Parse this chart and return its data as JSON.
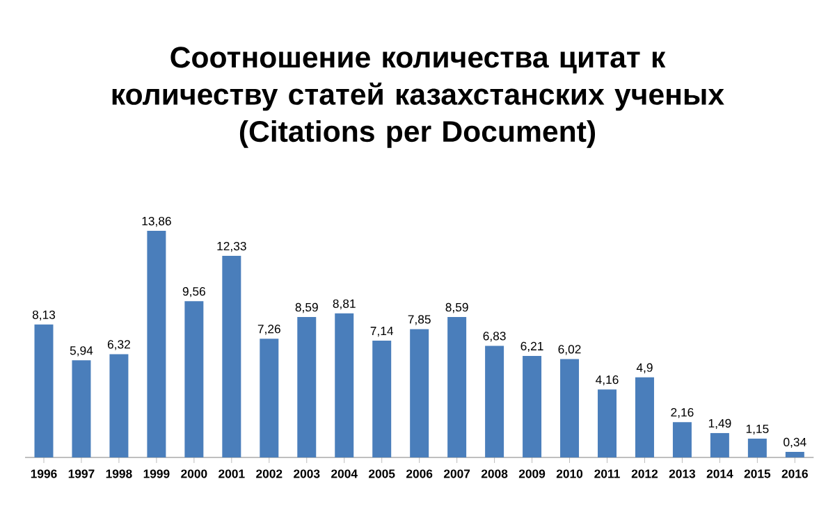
{
  "chart_data": {
    "type": "bar",
    "title": "Соотношение количества цитат к количеству статей казахстанских ученых",
    "subtitle": "(Citations per Document)",
    "categories": [
      "1996",
      "1997",
      "1998",
      "1999",
      "2000",
      "2001",
      "2002",
      "2003",
      "2004",
      "2005",
      "2006",
      "2007",
      "2008",
      "2009",
      "2010",
      "2011",
      "2012",
      "2013",
      "2014",
      "2015",
      "2016"
    ],
    "values": [
      8.13,
      5.94,
      6.32,
      13.86,
      9.56,
      12.33,
      7.26,
      8.59,
      8.81,
      7.14,
      7.85,
      8.59,
      6.83,
      6.21,
      6.02,
      4.16,
      4.9,
      2.16,
      1.49,
      1.15,
      0.34
    ],
    "value_labels": [
      "8,13",
      "5,94",
      "6,32",
      "13,86",
      "9,56",
      "12,33",
      "7,26",
      "8,59",
      "8,81",
      "7,14",
      "7,85",
      "8,59",
      "6,83",
      "6,21",
      "6,02",
      "4,16",
      "4,9",
      "2,16",
      "1,49",
      "1,15",
      "0,34"
    ],
    "color": "#4a7ebb",
    "tick_labels": "x"
  }
}
